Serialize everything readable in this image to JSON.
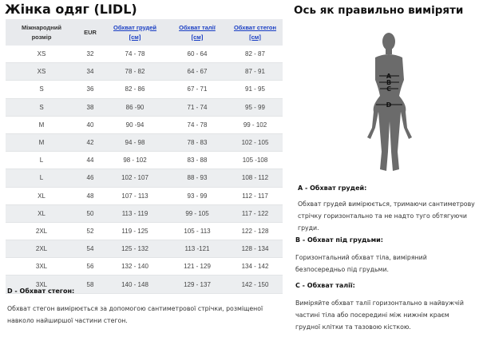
{
  "table_title": "Жінка одяг (LIDL)",
  "table": {
    "headers": [
      {
        "label": "Міжнародний розмір",
        "unit": "",
        "link": false
      },
      {
        "label": "EUR",
        "unit": "",
        "link": false
      },
      {
        "label": "Обхват грудей",
        "unit": "[см]",
        "link": true
      },
      {
        "label": "Обхват талії",
        "unit": "[см]",
        "link": true
      },
      {
        "label": "Обхват стегон",
        "unit": "[см]",
        "link": true
      }
    ],
    "rows": [
      [
        "XS",
        "32",
        "74 - 78",
        "60 - 64",
        "82 - 87"
      ],
      [
        "XS",
        "34",
        "78 - 82",
        "64 - 67",
        "87 - 91"
      ],
      [
        "S",
        "36",
        "82 - 86",
        "67 - 71",
        "91 - 95"
      ],
      [
        "S",
        "38",
        "86 -90",
        "71 - 74",
        "95 - 99"
      ],
      [
        "M",
        "40",
        "90 -94",
        "74 - 78",
        "99 - 102"
      ],
      [
        "M",
        "42",
        "94 - 98",
        "78 - 83",
        "102 - 105"
      ],
      [
        "L",
        "44",
        "98 - 102",
        "83 - 88",
        "105 -108"
      ],
      [
        "L",
        "46",
        "102 - 107",
        "88 - 93",
        "108 - 112"
      ],
      [
        "XL",
        "48",
        "107 - 113",
        "93 - 99",
        "112 - 117"
      ],
      [
        "XL",
        "50",
        "113 - 119",
        "99 - 105",
        "117 - 122"
      ],
      [
        "2XL",
        "52",
        "119 - 125",
        "105 - 113",
        "122 - 128"
      ],
      [
        "2XL",
        "54",
        "125 - 132",
        "113 -121",
        "128 - 134"
      ],
      [
        "3XL",
        "56",
        "132 - 140",
        "121 - 129",
        "134 - 142"
      ],
      [
        "3XL",
        "58",
        "140 - 148",
        "129 - 137",
        "142 - 150"
      ]
    ]
  },
  "measure_title": "Ось як правильно виміряти",
  "figure_labels": [
    "A",
    "B",
    "C",
    "D"
  ],
  "sections": {
    "a": {
      "title": "A - Обхват грудей:",
      "text": "Обхват грудей вимірюється, тримаючи сантиметрову стрічку горизонтально та не надто туго обтягуючи груди."
    },
    "b": {
      "title": "B - Обхват під грудьми:",
      "text": "Горизонтальний обхват тіла, виміряний безпосередньо під грудьми."
    },
    "c": {
      "title": "C - Обхват талії:",
      "text": "Виміряйте обхват талії горизонтально в найвужчій частині тіла або посередині між нижнім краєм грудної клітки та тазовою кісткою."
    },
    "d": {
      "title": "D - Обхват стегон:",
      "text": "Обхват стегон вимірюється за допомогою сантиметрової стрічки, розміщеної навколо найширшої частини стегон."
    }
  },
  "colors": {
    "link": "#1a3fc4",
    "header_bg": "#e8eaed",
    "row_alt": "#eceef0",
    "figure": "#6b6b6b"
  }
}
